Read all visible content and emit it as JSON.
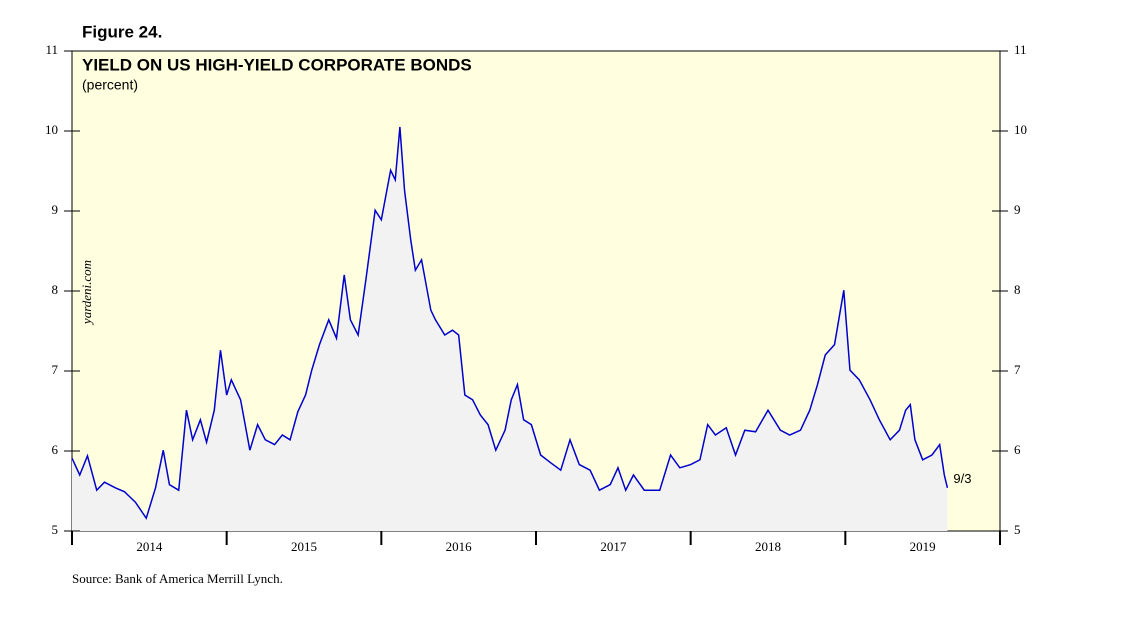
{
  "chart_data": {
    "type": "line",
    "figure_label": "Figure 24.",
    "title": "YIELD ON US HIGH-YIELD CORPORATE BONDS",
    "subtitle": "(percent)",
    "watermark": "yardeni.com",
    "source": "Source: Bank of America Merrill Lynch.",
    "annotation": "9/3",
    "xlim": [
      2014,
      2020
    ],
    "xticks": [
      2014,
      2015,
      2016,
      2017,
      2018,
      2019,
      2020
    ],
    "xtick_labels": [
      "2014",
      "2015",
      "2016",
      "2017",
      "2018",
      "2019"
    ],
    "ylim": [
      5,
      11
    ],
    "yticks": [
      5,
      6,
      7,
      8,
      9,
      10,
      11
    ],
    "background": "#ffffe0",
    "area_color": "#f2f2f2",
    "x": [
      2014.0,
      2014.05,
      2014.1,
      2014.16,
      2014.21,
      2014.28,
      2014.34,
      2014.41,
      2014.48,
      2014.54,
      2014.59,
      2014.63,
      2014.69,
      2014.74,
      2014.78,
      2014.83,
      2014.87,
      2014.92,
      2014.96,
      2015.0,
      2015.03,
      2015.09,
      2015.15,
      2015.2,
      2015.25,
      2015.31,
      2015.36,
      2015.41,
      2015.46,
      2015.51,
      2015.55,
      2015.6,
      2015.66,
      2015.71,
      2015.76,
      2015.8,
      2015.85,
      2015.9,
      2015.96,
      2016.0,
      2016.06,
      2016.09,
      2016.12,
      2016.15,
      2016.19,
      2016.22,
      2016.26,
      2016.32,
      2016.35,
      2016.41,
      2016.46,
      2016.5,
      2016.54,
      2016.59,
      2016.64,
      2016.69,
      2016.74,
      2016.8,
      2016.84,
      2016.88,
      2016.92,
      2016.97,
      2017.03,
      2017.09,
      2017.16,
      2017.22,
      2017.28,
      2017.35,
      2017.41,
      2017.48,
      2017.53,
      2017.58,
      2017.63,
      2017.7,
      2017.8,
      2017.87,
      2017.93,
      2018.0,
      2018.06,
      2018.11,
      2018.16,
      2018.23,
      2018.29,
      2018.35,
      2018.42,
      2018.5,
      2018.58,
      2018.64,
      2018.71,
      2018.77,
      2018.82,
      2018.87,
      2018.93,
      2018.99,
      2019.03,
      2019.09,
      2019.16,
      2019.22,
      2019.29,
      2019.35,
      2019.39,
      2019.42,
      2019.45,
      2019.5,
      2019.56,
      2019.61,
      2019.64,
      2019.66
    ],
    "series": [
      {
        "name": "Yield",
        "color": "#0000cc",
        "values": [
          5.91,
          5.7,
          5.94,
          5.51,
          5.61,
          5.54,
          5.49,
          5.36,
          5.16,
          5.54,
          6.01,
          5.58,
          5.51,
          6.51,
          6.14,
          6.39,
          6.11,
          6.51,
          7.26,
          6.7,
          6.89,
          6.64,
          6.01,
          6.33,
          6.14,
          6.08,
          6.2,
          6.14,
          6.49,
          6.7,
          7.01,
          7.33,
          7.64,
          7.41,
          8.2,
          7.64,
          7.45,
          8.14,
          9.01,
          8.89,
          9.51,
          9.39,
          10.05,
          9.26,
          8.64,
          8.26,
          8.39,
          7.76,
          7.64,
          7.45,
          7.51,
          7.45,
          6.7,
          6.64,
          6.45,
          6.33,
          6.01,
          6.26,
          6.64,
          6.83,
          6.39,
          6.33,
          5.95,
          5.86,
          5.76,
          6.14,
          5.83,
          5.76,
          5.51,
          5.58,
          5.79,
          5.51,
          5.7,
          5.51,
          5.51,
          5.95,
          5.79,
          5.83,
          5.89,
          6.33,
          6.2,
          6.29,
          5.95,
          6.26,
          6.24,
          6.51,
          6.26,
          6.2,
          6.26,
          6.51,
          6.83,
          7.2,
          7.33,
          8.01,
          7.01,
          6.89,
          6.64,
          6.39,
          6.14,
          6.26,
          6.51,
          6.58,
          6.14,
          5.89,
          5.95,
          6.08,
          5.7,
          5.54
        ]
      }
    ]
  }
}
